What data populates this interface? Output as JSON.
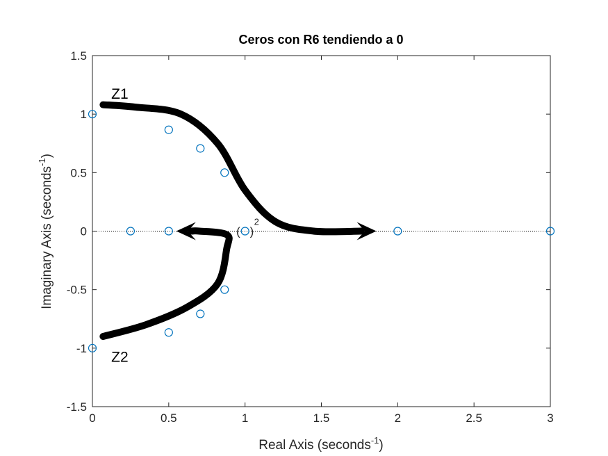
{
  "chart_data": {
    "type": "scatter",
    "title": "Ceros con R6 tendiendo a 0",
    "xlabel": "Real Axis (seconds",
    "ylabel": "Imaginary Axis (seconds",
    "axis_unit_superscript": "-1",
    "xlim": [
      0,
      3
    ],
    "ylim": [
      -1.5,
      1.5
    ],
    "xticks": [
      0,
      0.5,
      1,
      1.5,
      2,
      2.5,
      3
    ],
    "xtick_labels": [
      "0",
      "0.5",
      "1",
      "1.5",
      "2",
      "2.5",
      "3"
    ],
    "yticks": [
      1.5,
      1,
      0.5,
      0,
      -0.5,
      -1,
      -1.5
    ],
    "ytick_labels": [
      "1.5",
      "1",
      "0.5",
      "0",
      "-0.5",
      "-1",
      "-1.5"
    ],
    "grid": false,
    "marker_color": "#0072BD",
    "points": [
      {
        "x": 0,
        "y": 1
      },
      {
        "x": 0.5,
        "y": 0.866
      },
      {
        "x": 0.707,
        "y": 0.707
      },
      {
        "x": 0.866,
        "y": 0.5
      },
      {
        "x": 0.25,
        "y": 0
      },
      {
        "x": 0.5,
        "y": 0
      },
      {
        "x": 1,
        "y": 0
      },
      {
        "x": 2,
        "y": 0
      },
      {
        "x": 3,
        "y": 0
      },
      {
        "x": 0.866,
        "y": -0.5
      },
      {
        "x": 0.707,
        "y": -0.707
      },
      {
        "x": 0.5,
        "y": -0.866
      },
      {
        "x": 0,
        "y": -1
      }
    ],
    "multiplicity_label": {
      "text": "(",
      "text_close": ")",
      "sup": "2",
      "x": 1,
      "y": 0
    },
    "annotations": [
      {
        "label": "Z1",
        "text_at": {
          "x": 0.06,
          "y": 1.18
        }
      },
      {
        "label": "Z2",
        "text_at": {
          "x": 0.06,
          "y": -1.07
        }
      }
    ],
    "trajectories": [
      {
        "name": "Z1",
        "path": [
          [
            0.07,
            1.08
          ],
          [
            0.28,
            1.06
          ],
          [
            0.58,
            1.0
          ],
          [
            0.82,
            0.75
          ],
          [
            1.0,
            0.35
          ],
          [
            1.2,
            0.08
          ],
          [
            1.45,
            0.0
          ],
          [
            1.86,
            0.0
          ]
        ],
        "arrow": "end"
      },
      {
        "name": "Z2",
        "path": [
          [
            0.07,
            -0.9
          ],
          [
            0.35,
            -0.8
          ],
          [
            0.62,
            -0.65
          ],
          [
            0.82,
            -0.45
          ],
          [
            0.88,
            -0.15
          ],
          [
            0.88,
            -0.03
          ],
          [
            0.7,
            0.0
          ],
          [
            0.55,
            0.0
          ]
        ],
        "arrow": "end"
      }
    ]
  }
}
